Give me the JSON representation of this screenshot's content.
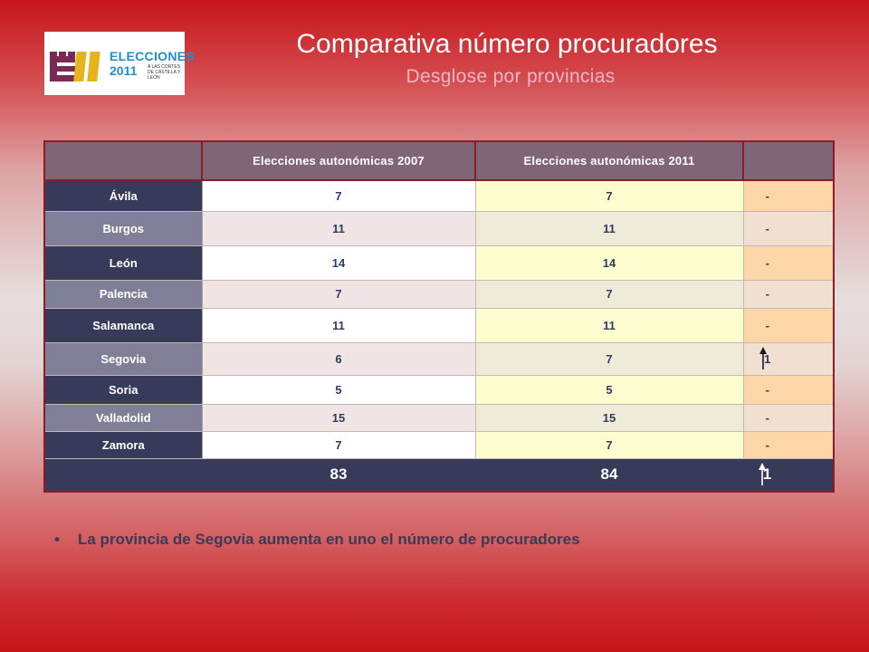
{
  "logo": {
    "mark": "E11",
    "name": "ELECCIONES",
    "year": "2011",
    "tagline": "A LAS CORTES DE CASTILLA Y LEÓN",
    "colors": {
      "mark": "#7b2a56",
      "text": "#1f8fcf"
    }
  },
  "title": "Comparativa número procuradores",
  "subtitle": "Desglose por provincias",
  "table": {
    "headers": [
      "",
      "Elecciones  autonómicas  2007",
      "Elecciones  autonómicas  2011",
      ""
    ],
    "rows": [
      {
        "provincia": "Ávila",
        "v2007": "7",
        "v2011": "7",
        "diff": "-"
      },
      {
        "provincia": "Burgos",
        "v2007": "11",
        "v2011": "11",
        "diff": "-"
      },
      {
        "provincia": "León",
        "v2007": "14",
        "v2011": "14",
        "diff": "-"
      },
      {
        "provincia": "Palencia",
        "v2007": "7",
        "v2011": "7",
        "diff": "-"
      },
      {
        "provincia": "Salamanca",
        "v2007": "11",
        "v2011": "11",
        "diff": "-"
      },
      {
        "provincia": "Segovia",
        "v2007": "6",
        "v2011": "7",
        "diff": "1",
        "trend": "up-arrow-icon"
      },
      {
        "provincia": "Soria",
        "v2007": "5",
        "v2011": "5",
        "diff": "-"
      },
      {
        "provincia": "Valladolid",
        "v2007": "15",
        "v2011": "15",
        "diff": "-"
      },
      {
        "provincia": "Zamora",
        "v2007": "7",
        "v2011": "7",
        "diff": "-"
      }
    ],
    "total": {
      "v2007": "83",
      "v2011": "84",
      "diff": "1",
      "trend": "up-arrow-icon"
    }
  },
  "note": {
    "bullet": "•",
    "text": "La provincia de Segovia aumenta en uno el número de procuradores"
  }
}
